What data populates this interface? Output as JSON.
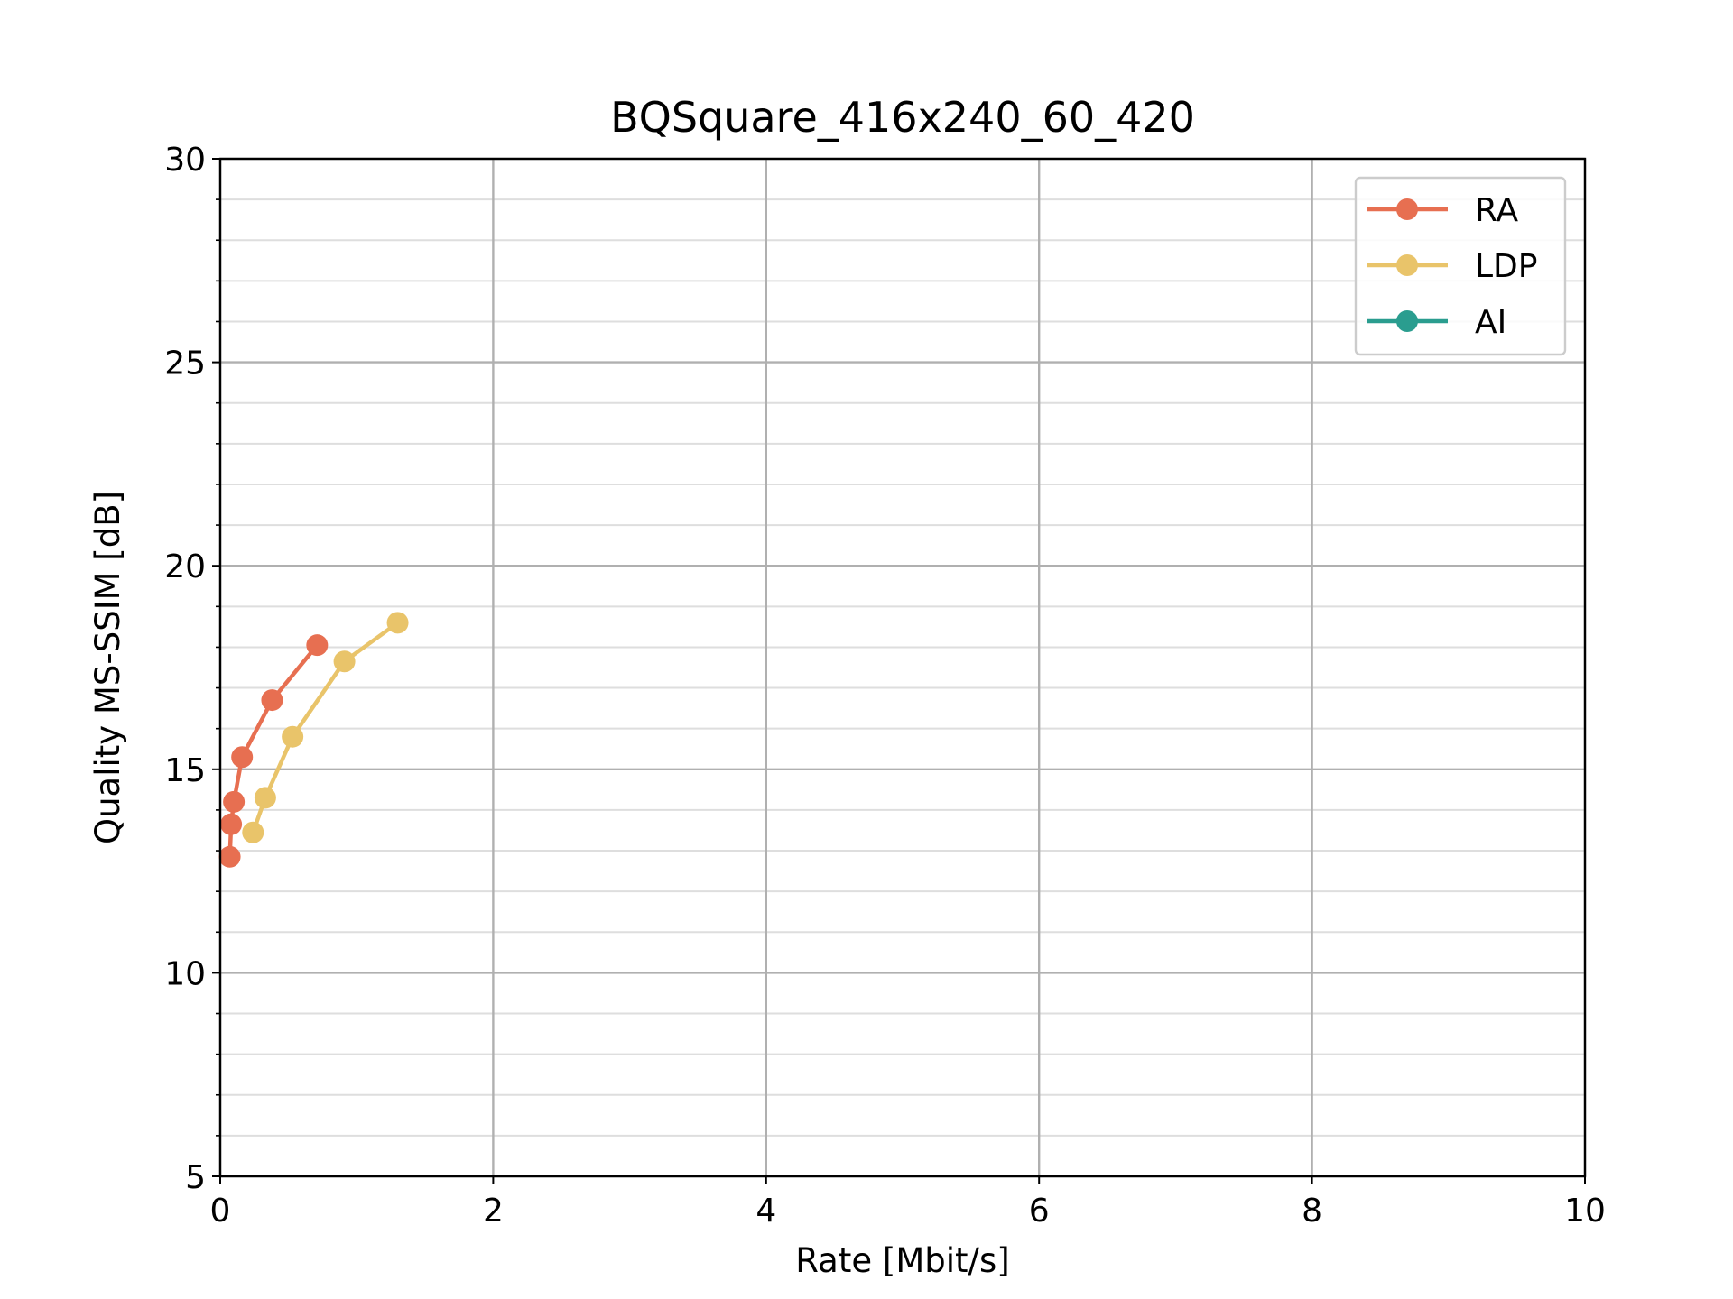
{
  "chart_data": {
    "type": "line",
    "title": "BQSquare_416x240_60_420",
    "xlabel": "Rate [Mbit/s]",
    "ylabel": "Quality MS-SSIM [dB]",
    "xlim": [
      0,
      10
    ],
    "ylim": [
      5,
      30
    ],
    "x_ticks": [
      0,
      2,
      4,
      6,
      8,
      10
    ],
    "y_ticks": [
      5,
      10,
      15,
      20,
      25,
      30
    ],
    "y_minor_step": 1,
    "grid": true,
    "legend_position": "top-right",
    "series": [
      {
        "name": "RA",
        "color": "#e76f51",
        "x": [
          0.07,
          0.08,
          0.1,
          0.16,
          0.38,
          0.71
        ],
        "y": [
          12.85,
          13.65,
          14.2,
          15.3,
          16.7,
          18.05
        ]
      },
      {
        "name": "LDP",
        "color": "#e9c46a",
        "x": [
          0.24,
          0.33,
          0.53,
          0.91,
          1.3
        ],
        "y": [
          13.45,
          14.3,
          15.8,
          17.65,
          18.6
        ]
      },
      {
        "name": "AI",
        "color": "#2a9d8f",
        "x": [],
        "y": []
      }
    ]
  }
}
